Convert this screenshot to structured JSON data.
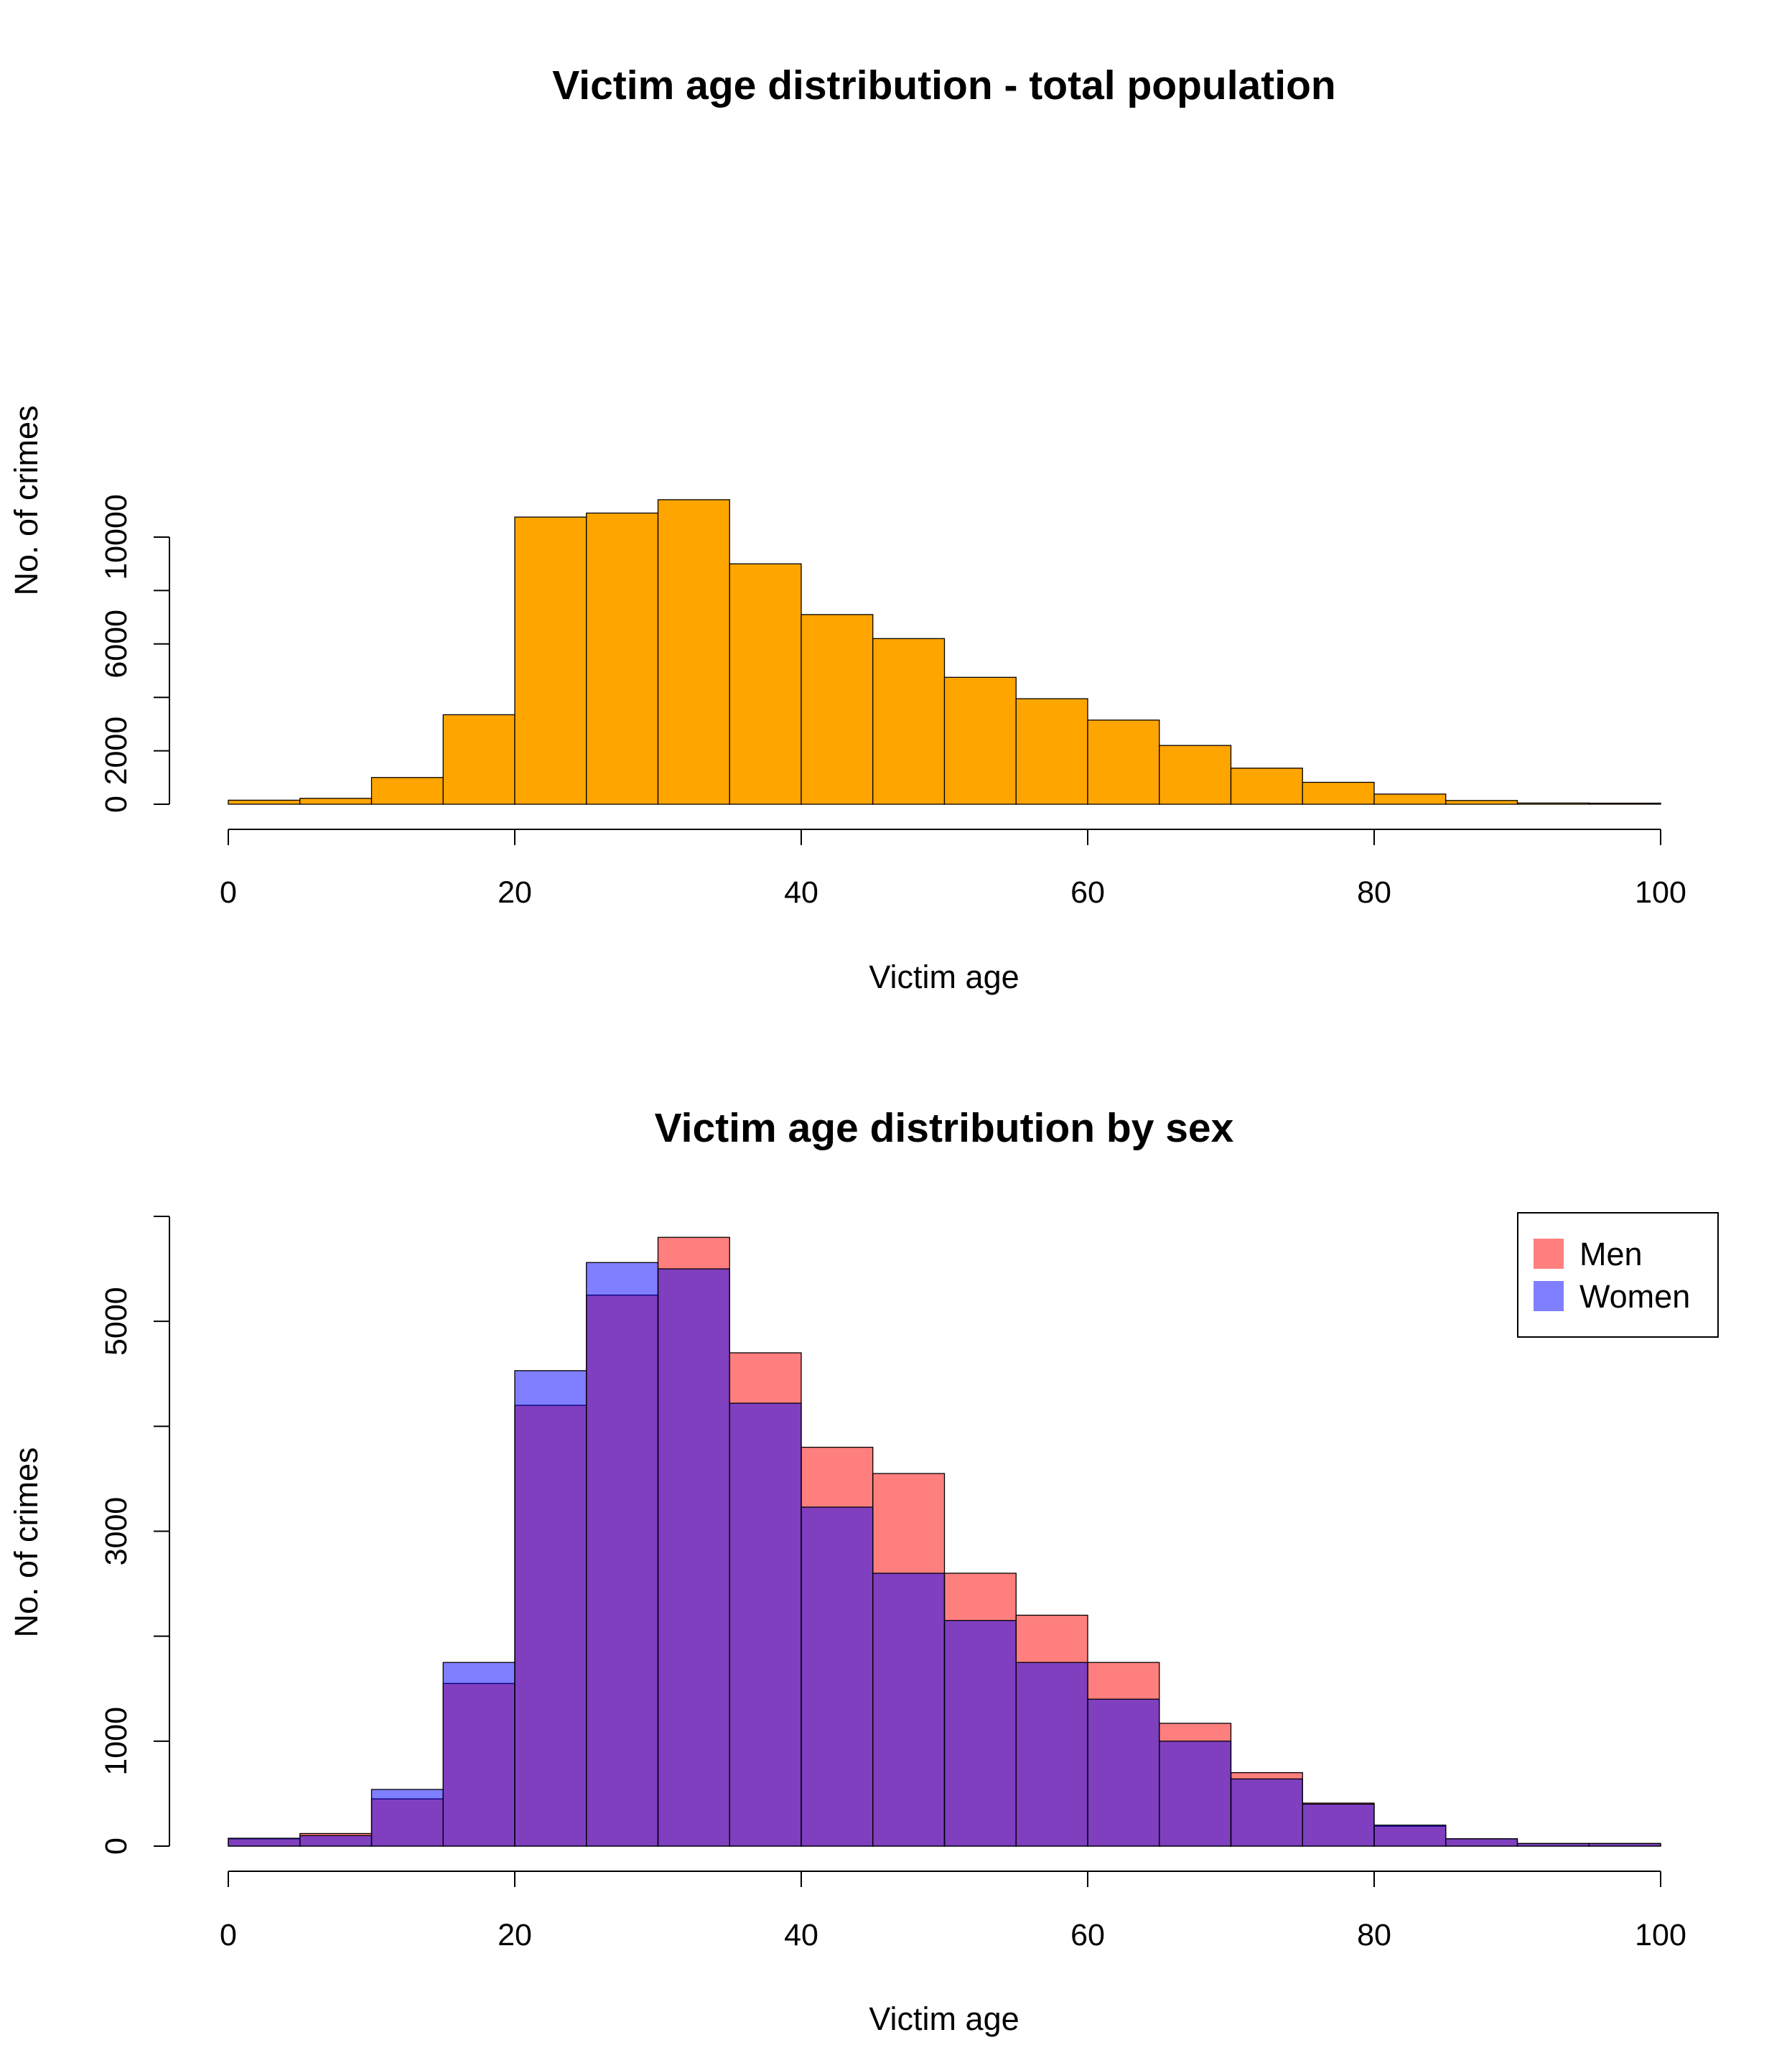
{
  "chart_data": [
    {
      "type": "bar",
      "title": "Victim age distribution - total population",
      "xlabel": "Victim age",
      "ylabel": "No. of crimes",
      "xlim": [
        0,
        100
      ],
      "ylim": [
        0,
        11500
      ],
      "x_ticks": [
        0,
        20,
        40,
        60,
        80,
        100
      ],
      "y_ticks": [
        0,
        2000,
        4000,
        6000,
        8000,
        10000
      ],
      "y_tick_labels": [
        "0",
        "2000",
        "",
        "6000",
        "",
        "10000"
      ],
      "bin_width": 5,
      "bins": [
        0,
        5,
        10,
        15,
        20,
        25,
        30,
        35,
        40,
        45,
        50,
        55,
        60,
        65,
        70,
        75,
        80,
        85,
        90,
        95
      ],
      "series": [
        {
          "name": "",
          "color": "#FFA500",
          "values": [
            150,
            220,
            1000,
            3350,
            10750,
            10900,
            11400,
            9000,
            7100,
            6200,
            4750,
            3950,
            3150,
            2200,
            1350,
            820,
            380,
            140,
            45,
            40
          ]
        }
      ],
      "grid": false
    },
    {
      "type": "bar",
      "title": "Victim age distribution by sex",
      "xlabel": "Victim age",
      "ylabel": "No. of crimes",
      "xlim": [
        0,
        100
      ],
      "ylim": [
        0,
        6000
      ],
      "x_ticks": [
        0,
        20,
        40,
        60,
        80,
        100
      ],
      "y_ticks": [
        0,
        1000,
        2000,
        3000,
        4000,
        5000,
        6000
      ],
      "y_tick_labels": [
        "0",
        "1000",
        "",
        "3000",
        "",
        "5000",
        ""
      ],
      "bin_width": 5,
      "bins": [
        0,
        5,
        10,
        15,
        20,
        25,
        30,
        35,
        40,
        45,
        50,
        55,
        60,
        65,
        70,
        75,
        80,
        85,
        90,
        95
      ],
      "series": [
        {
          "name": "Men",
          "color": "#FF0000",
          "opacity": 0.5,
          "values": [
            70,
            120,
            450,
            1550,
            4200,
            5250,
            5800,
            4700,
            3800,
            3550,
            2600,
            2200,
            1750,
            1170,
            700,
            410,
            190,
            70,
            25,
            25
          ]
        },
        {
          "name": "Women",
          "color": "#0000FF",
          "opacity": 0.5,
          "values": [
            75,
            100,
            540,
            1750,
            4530,
            5560,
            5500,
            4220,
            3230,
            2600,
            2150,
            1750,
            1400,
            1000,
            640,
            400,
            200,
            70,
            25,
            25
          ]
        }
      ],
      "legend": {
        "position": "top-right",
        "entries": [
          "Men",
          "Women"
        ]
      },
      "grid": false
    }
  ]
}
